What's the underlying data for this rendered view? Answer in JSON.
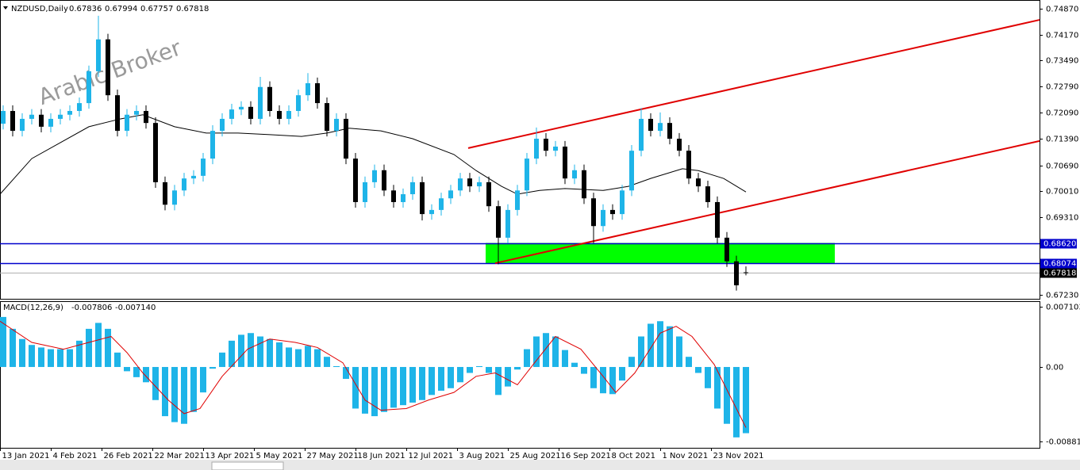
{
  "chart_data": {
    "type": "candlestick",
    "symbol": "NZDUSD,Daily",
    "watermark": "Arabic Broker",
    "bull_color": "#1eb4e8",
    "bear_color": "#000000",
    "x": [
      1,
      4,
      7,
      10,
      13,
      16,
      19,
      22,
      25,
      28,
      31,
      34,
      37,
      40,
      43,
      46,
      49,
      52,
      55,
      58,
      61,
      64,
      67,
      70,
      73,
      76,
      79,
      82,
      85,
      88,
      91,
      94,
      97,
      100,
      103,
      106,
      109,
      112,
      115,
      118,
      121,
      124,
      127,
      130,
      133,
      136,
      139,
      142,
      145,
      148,
      151,
      154,
      157,
      160,
      163,
      166,
      169,
      172,
      175,
      178,
      181,
      184,
      187,
      190,
      193,
      196,
      199,
      202,
      205,
      208,
      211,
      214,
      217,
      220,
      223,
      226,
      229,
      232,
      235
    ],
    "open": [
      0.718,
      0.7214,
      0.7161,
      0.7193,
      0.7204,
      0.7172,
      0.7193,
      0.7204,
      0.7214,
      0.7235,
      0.732,
      0.7405,
      0.7256,
      0.7161,
      0.7204,
      0.7214,
      0.7182,
      0.7024,
      0.6964,
      0.7002,
      0.7034,
      0.7041,
      0.7087,
      0.7161,
      0.7193,
      0.7218,
      0.7225,
      0.7193,
      0.7278,
      0.7214,
      0.7193,
      0.7214,
      0.7256,
      0.7288,
      0.7235,
      0.7161,
      0.7193,
      0.7087,
      0.6971,
      0.7024,
      0.7056,
      0.7002,
      0.6971,
      0.6992,
      0.7024,
      0.6939,
      0.695,
      0.6981,
      0.7002,
      0.7034,
      0.7013,
      0.7024,
      0.696,
      0.6876,
      0.695,
      0.7002,
      0.7087,
      0.714,
      0.7108,
      0.7119,
      0.7034,
      0.7056,
      0.6981,
      0.6907,
      0.695,
      0.6939,
      0.7002,
      0.7108,
      0.7193,
      0.7161,
      0.7182,
      0.714,
      0.7108,
      0.7034,
      0.7013,
      0.6971,
      0.6876,
      0.6813,
      0.67836
    ],
    "high": [
      0.7229,
      0.7229,
      0.7208,
      0.7219,
      0.7219,
      0.7208,
      0.7219,
      0.7229,
      0.725,
      0.7335,
      0.7468,
      0.742,
      0.7271,
      0.7219,
      0.7229,
      0.7229,
      0.7197,
      0.7039,
      0.7017,
      0.7049,
      0.7056,
      0.7102,
      0.7176,
      0.7208,
      0.7233,
      0.724,
      0.724,
      0.7305,
      0.7293,
      0.7229,
      0.7229,
      0.7271,
      0.7315,
      0.7303,
      0.725,
      0.7208,
      0.7208,
      0.7102,
      0.7039,
      0.7071,
      0.7071,
      0.7017,
      0.7007,
      0.7039,
      0.7039,
      0.6965,
      0.6996,
      0.7017,
      0.7049,
      0.7049,
      0.7039,
      0.7039,
      0.6975,
      0.6965,
      0.7017,
      0.7102,
      0.717,
      0.7155,
      0.7134,
      0.7134,
      0.7071,
      0.7071,
      0.6996,
      0.6965,
      0.6965,
      0.7017,
      0.7123,
      0.7222,
      0.7208,
      0.721,
      0.7197,
      0.7155,
      0.7123,
      0.7049,
      0.7028,
      0.6986,
      0.6891,
      0.6828,
      0.67994
    ],
    "low": [
      0.7165,
      0.7146,
      0.7146,
      0.7178,
      0.7157,
      0.7157,
      0.7178,
      0.7189,
      0.7199,
      0.722,
      0.7305,
      0.7241,
      0.7146,
      0.7146,
      0.7189,
      0.7167,
      0.7009,
      0.6949,
      0.6949,
      0.6987,
      0.7019,
      0.7026,
      0.7072,
      0.7146,
      0.7178,
      0.7203,
      0.7178,
      0.7178,
      0.7199,
      0.7178,
      0.7178,
      0.7199,
      0.7241,
      0.722,
      0.7146,
      0.7146,
      0.7072,
      0.6956,
      0.6956,
      0.7009,
      0.6987,
      0.6956,
      0.6956,
      0.6977,
      0.6922,
      0.6924,
      0.6935,
      0.6966,
      0.6987,
      0.6998,
      0.6998,
      0.6945,
      0.6805,
      0.6861,
      0.6935,
      0.6987,
      0.7072,
      0.7093,
      0.7093,
      0.7019,
      0.7019,
      0.6966,
      0.6862,
      0.6892,
      0.6924,
      0.6924,
      0.6987,
      0.7093,
      0.7146,
      0.7146,
      0.7125,
      0.7093,
      0.7019,
      0.6998,
      0.6956,
      0.6861,
      0.6798,
      0.6735,
      0.67757
    ],
    "close": [
      0.7214,
      0.7161,
      0.7193,
      0.7204,
      0.7172,
      0.7193,
      0.7204,
      0.7214,
      0.7235,
      0.732,
      0.7405,
      0.7256,
      0.7161,
      0.7204,
      0.7214,
      0.7182,
      0.7024,
      0.6964,
      0.7002,
      0.7034,
      0.7041,
      0.7087,
      0.7161,
      0.7193,
      0.7218,
      0.7225,
      0.7193,
      0.7278,
      0.7214,
      0.7193,
      0.7214,
      0.7256,
      0.7288,
      0.7235,
      0.7161,
      0.7193,
      0.7087,
      0.6971,
      0.7024,
      0.7056,
      0.7002,
      0.6971,
      0.6992,
      0.7024,
      0.6939,
      0.695,
      0.6981,
      0.7002,
      0.7034,
      0.7013,
      0.7024,
      0.696,
      0.6876,
      0.695,
      0.7002,
      0.7087,
      0.714,
      0.7108,
      0.7119,
      0.7034,
      0.7056,
      0.6981,
      0.6907,
      0.695,
      0.6939,
      0.7002,
      0.7108,
      0.7193,
      0.7161,
      0.7182,
      0.714,
      0.7108,
      0.7034,
      0.7013,
      0.6971,
      0.6876,
      0.6813,
      0.6749,
      0.67818
    ],
    "moving_average": {
      "color": "#000000",
      "x": [
        0,
        10,
        28,
        38,
        45,
        55,
        65,
        75,
        85,
        95,
        103,
        110,
        120,
        130,
        143,
        150,
        158,
        163,
        170,
        178,
        190,
        198,
        205,
        215,
        220,
        228,
        235
      ],
      "values": [
        0.6992,
        0.7087,
        0.7172,
        0.7193,
        0.7204,
        0.7172,
        0.7155,
        0.7155,
        0.7151,
        0.7146,
        0.7155,
        0.7168,
        0.7161,
        0.714,
        0.7098,
        0.7055,
        0.7013,
        0.6992,
        0.7002,
        0.7007,
        0.7002,
        0.7013,
        0.7034,
        0.706,
        0.7055,
        0.7034,
        0.6998
      ]
    },
    "trendlines": [
      {
        "color": "#e00000",
        "x": [
          147.5,
          327.5
        ],
        "values": [
          0.7115,
          0.7457
        ]
      },
      {
        "color": "#e00000",
        "x": [
          156,
          327.5
        ],
        "values": [
          0.6808,
          0.7134
        ]
      }
    ],
    "zone": {
      "color": "#00ff00",
      "x": [
        153,
        263
      ],
      "values": [
        0.68074,
        0.6862
      ]
    },
    "hlines": [
      {
        "value": 0.6862,
        "label": "0.68620"
      },
      0.68074
    ],
    "hline_color": "#0000cc",
    "xlim": [
      0,
      327.5
    ],
    "ylim": [
      0.6713,
      0.751
    ],
    "yticks": [
      {
        "value": 0.7487,
        "label": "0.74870"
      },
      {
        "value": 0.7417,
        "label": "0.74170"
      },
      {
        "value": 0.7349,
        "label": "0.73490"
      },
      {
        "value": 0.7279,
        "label": "0.72790"
      },
      {
        "value": 0.7209,
        "label": "0.72090"
      },
      {
        "value": 0.7139,
        "label": "0.71390"
      },
      {
        "value": 0.7069,
        "label": "0.70690"
      },
      {
        "value": 0.7001,
        "label": "0.70010"
      },
      {
        "value": 0.6931,
        "label": "0.69310"
      },
      {
        "value": 0.6723,
        "label": "0.67230"
      }
    ],
    "xticks": [
      {
        "value": 0,
        "label": "13 Jan 2021"
      },
      {
        "value": 16,
        "label": "4 Feb 2021"
      },
      {
        "value": 32,
        "label": "26 Feb 2021"
      },
      {
        "value": 48,
        "label": "22 Mar 2021"
      },
      {
        "value": 64,
        "label": "13 Apr 2021"
      },
      {
        "value": 80,
        "label": "5 May 2021"
      },
      {
        "value": 96,
        "label": "27 May 2021"
      },
      {
        "value": 112,
        "label": "18 Jun 2021"
      },
      {
        "value": 128,
        "label": "12 Jul 2021"
      },
      {
        "value": 144,
        "label": "3 Aug 2021"
      },
      {
        "value": 160,
        "label": "25 Aug 2021"
      },
      {
        "value": 176,
        "label": "16 Sep 2021"
      },
      {
        "value": 192,
        "label": "8 Oct 2021"
      },
      {
        "value": 208,
        "label": "1 Nov 2021"
      },
      {
        "value": 224,
        "label": "23 Nov 2021"
      }
    ],
    "macd": {
      "title": "MACD(12,26,9)",
      "ylim": [
        -0.00953,
        0.00776
      ],
      "yticks": [
        0.007103,
        {
          "value": 0,
          "label": "0.00"
        },
        -0.008813
      ],
      "histogram": {
        "color": "#1eb4e8",
        "values": [
          0.0059,
          0.0045,
          0.0033,
          0.0026,
          0.0023,
          0.0021,
          0.0021,
          0.0021,
          0.0031,
          0.0045,
          0.0052,
          0.0045,
          0.0017,
          -0.0005,
          -0.0012,
          -0.0018,
          -0.0039,
          -0.0058,
          -0.0065,
          -0.0067,
          -0.0053,
          -0.003,
          -0.0002,
          0.0017,
          0.0031,
          0.0038,
          0.004,
          0.0036,
          0.0033,
          0.0029,
          0.0023,
          0.0021,
          0.0025,
          0.0021,
          0.0012,
          0.0001,
          -0.0014,
          -0.0049,
          -0.0055,
          -0.0058,
          -0.0053,
          -0.0048,
          -0.0045,
          -0.0042,
          -0.0039,
          -0.0033,
          -0.0028,
          -0.0025,
          -0.0018,
          -0.0007,
          0.0001,
          -0.0007,
          -0.0033,
          -0.0023,
          -0.0003,
          0.0021,
          0.0036,
          0.004,
          0.0036,
          0.002,
          0.0005,
          -0.0008,
          -0.0025,
          -0.0031,
          -0.0032,
          -0.0016,
          0.0012,
          0.0036,
          0.0051,
          0.0054,
          0.0048,
          0.0036,
          0.0012,
          -0.0007,
          -0.0025,
          -0.0049,
          -0.0067,
          -0.0083,
          -0.007806
        ]
      },
      "signal": {
        "color": "#e00000",
        "x": [
          0,
          10,
          20,
          28,
          35,
          40,
          45,
          53,
          58,
          63,
          70,
          78,
          85,
          93,
          100,
          108,
          115,
          120,
          128,
          135,
          143,
          150,
          156,
          163,
          168,
          175,
          183,
          190,
          194,
          200,
          208,
          213,
          218,
          225,
          235
        ],
        "values": [
          0.0054,
          0.0029,
          0.0021,
          0.0029,
          0.0036,
          0.0017,
          -0.0007,
          -0.0039,
          -0.0055,
          -0.0049,
          -0.0011,
          0.0021,
          0.0033,
          0.0029,
          0.0023,
          0.0005,
          -0.0039,
          -0.0051,
          -0.0049,
          -0.0039,
          -0.003,
          -0.0011,
          -0.0007,
          -0.0021,
          0.0003,
          0.0036,
          0.0021,
          -0.0011,
          -0.003,
          -0.0007,
          0.004,
          0.0048,
          0.0036,
          0.0003,
          -0.00714
        ],
        "last_label": "-0.007140"
      }
    }
  }
}
